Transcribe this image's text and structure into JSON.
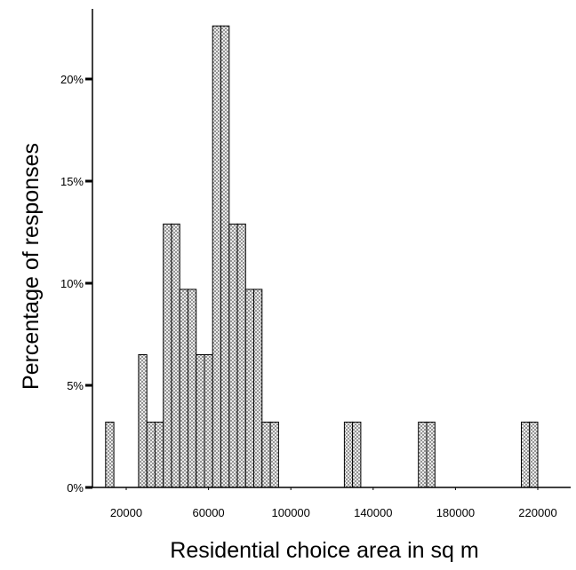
{
  "chart_data": {
    "type": "bar",
    "subtype": "histogram",
    "xlabel": "Residential choice area in sq m",
    "ylabel": "Percentage of responses",
    "x_ticks": [
      "20000",
      "60000",
      "100000",
      "140000",
      "180000",
      "220000"
    ],
    "x_tick_values": [
      20000,
      60000,
      100000,
      140000,
      180000,
      220000
    ],
    "y_ticks": [
      "0%",
      "5%",
      "10%",
      "15%",
      "20%"
    ],
    "y_tick_values": [
      0,
      5,
      10,
      15,
      20
    ],
    "xlim": [
      10000,
      233000
    ],
    "ylim": [
      0,
      23
    ],
    "bin_width": 4000,
    "bins": [
      {
        "x": 12000,
        "value": 3.2
      },
      {
        "x": 28000,
        "value": 6.5
      },
      {
        "x": 32000,
        "value": 3.2
      },
      {
        "x": 36000,
        "value": 3.2
      },
      {
        "x": 40000,
        "value": 12.9
      },
      {
        "x": 44000,
        "value": 12.9
      },
      {
        "x": 48000,
        "value": 9.7
      },
      {
        "x": 52000,
        "value": 9.7
      },
      {
        "x": 56000,
        "value": 6.5
      },
      {
        "x": 60000,
        "value": 6.5
      },
      {
        "x": 64000,
        "value": 22.6
      },
      {
        "x": 68000,
        "value": 22.6
      },
      {
        "x": 72000,
        "value": 12.9
      },
      {
        "x": 76000,
        "value": 12.9
      },
      {
        "x": 80000,
        "value": 9.7
      },
      {
        "x": 84000,
        "value": 9.7
      },
      {
        "x": 88000,
        "value": 3.2
      },
      {
        "x": 92000,
        "value": 3.2
      },
      {
        "x": 128000,
        "value": 3.2
      },
      {
        "x": 132000,
        "value": 3.2
      },
      {
        "x": 164000,
        "value": 3.2
      },
      {
        "x": 168000,
        "value": 3.2
      },
      {
        "x": 214000,
        "value": 3.2
      },
      {
        "x": 218000,
        "value": 3.2
      }
    ],
    "grid": false,
    "colors": {
      "bar_fill": "#7f7f7f",
      "bar_pattern": "#ffffff",
      "bar_stroke": "#000000",
      "axis": "#000000"
    }
  }
}
